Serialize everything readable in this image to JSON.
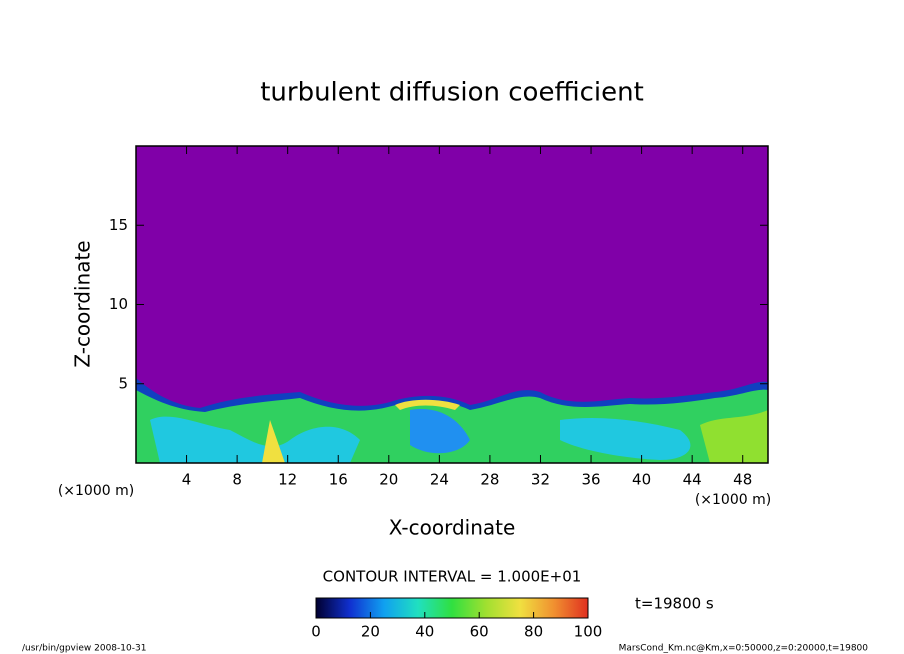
{
  "chart_data": {
    "type": "contour",
    "title": "turbulent diffusion coefficient",
    "x_label": "X-coordinate",
    "y_label": "Z-coordinate",
    "x_unit_left": "(×1000 m)",
    "x_unit_right": "(×1000 m)",
    "xlim": [
      0,
      50
    ],
    "xticks": [
      4,
      8,
      12,
      16,
      20,
      24,
      28,
      32,
      36,
      40,
      44,
      48
    ],
    "ylim": [
      0,
      20
    ],
    "yticks": [
      5,
      10,
      15
    ],
    "contour_interval": "CONTOUR INTERVAL = 1.000E+01",
    "time_label": "t=19800 s",
    "colorbar": {
      "lim": [
        0,
        100
      ],
      "ticks": [
        0,
        20,
        40,
        60,
        80,
        100
      ],
      "colors": [
        "#000030",
        "#1030d0",
        "#10a0f0",
        "#20e0c0",
        "#30e040",
        "#a0e030",
        "#f0e040",
        "#f09030",
        "#e03020"
      ]
    },
    "footer_left": "/usr/bin/gpview   2008-10-31",
    "footer_right": "MarsCond_Km.nc@Km,x=0:50000,z=0:20000,t=19800"
  }
}
